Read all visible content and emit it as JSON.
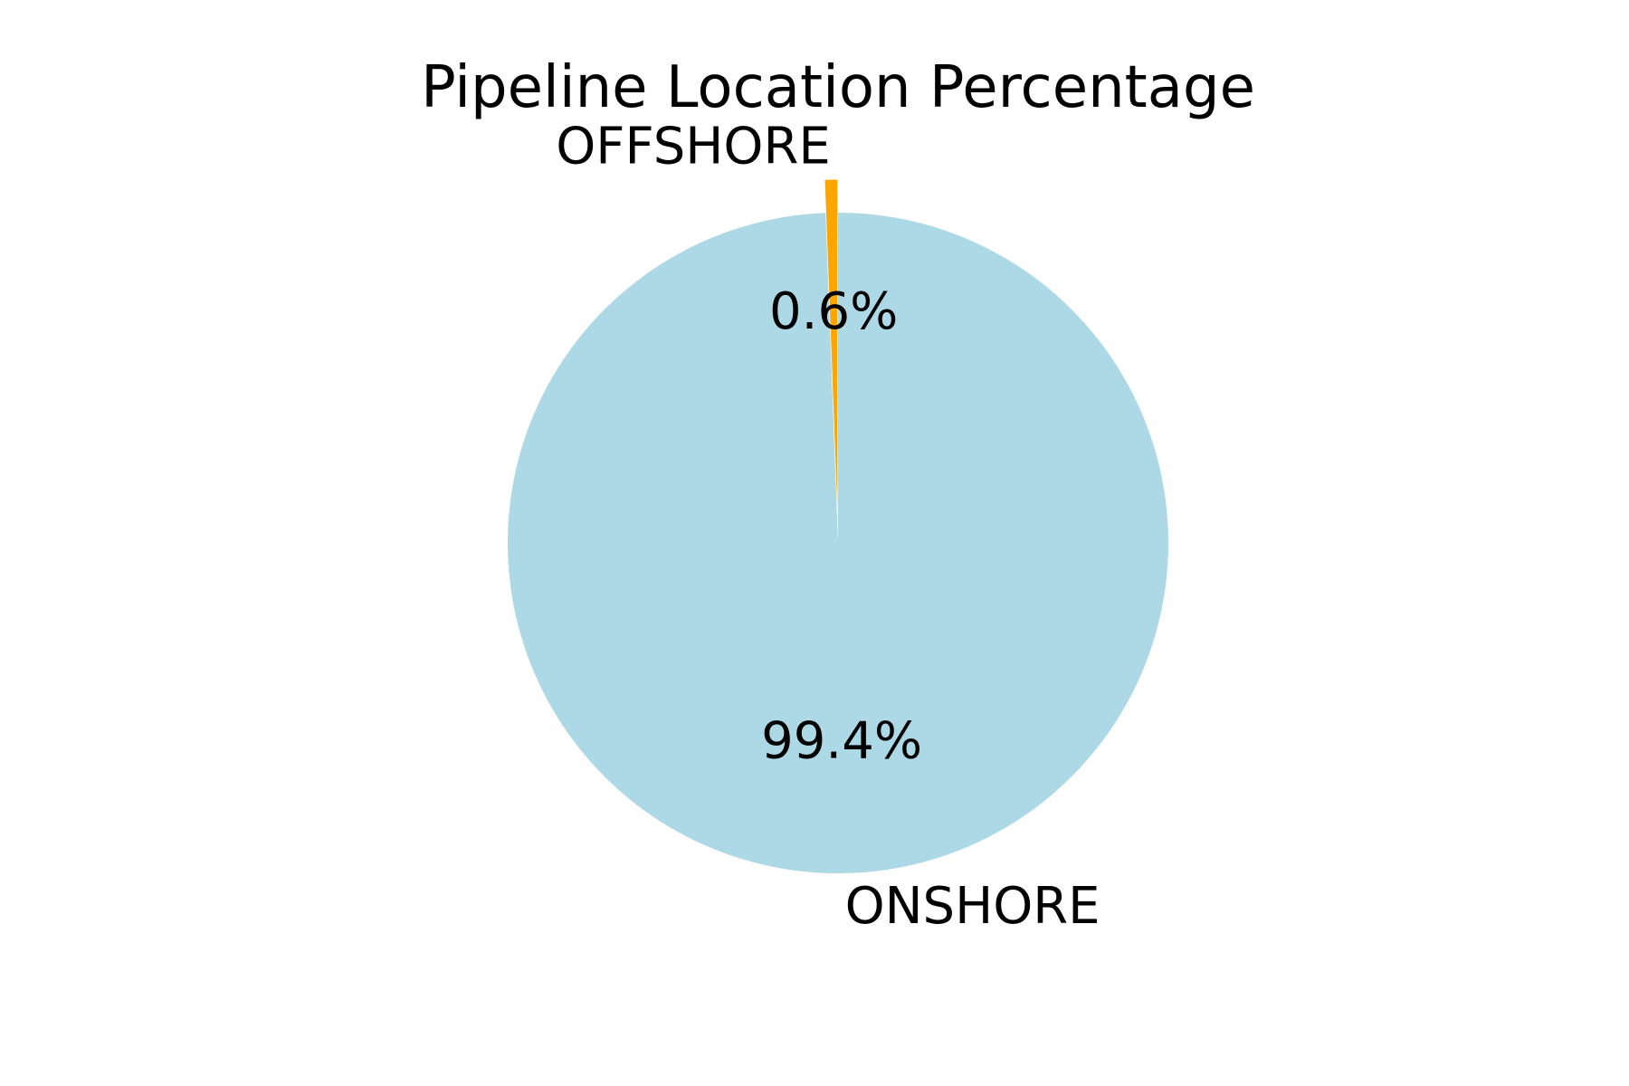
{
  "chart_data": {
    "type": "pie",
    "title": "Pipeline Location Percentage",
    "categories": [
      "OFFSHORE",
      "ONSHORE"
    ],
    "values": [
      0.6,
      99.4
    ],
    "value_labels": [
      "0.6%",
      "99.4%"
    ],
    "colors": [
      "#ffa500",
      "#add8e6"
    ],
    "explode": [
      0.1,
      0
    ],
    "start_angle_deg": 90,
    "counterclockwise": true,
    "legend": "none"
  }
}
